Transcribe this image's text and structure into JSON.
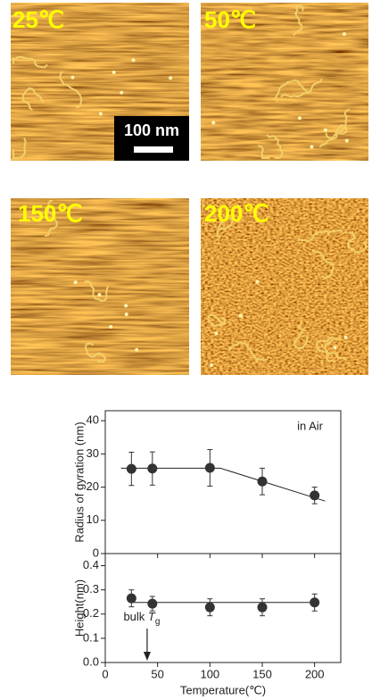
{
  "panels": [
    {
      "label": "25℃"
    },
    {
      "label": "50℃"
    },
    {
      "label": "150℃"
    },
    {
      "label": "200℃"
    }
  ],
  "scale_bar": "100 nm",
  "chart_data": [
    {
      "type": "scatter",
      "ylabel": "Radius of gyration (nm)",
      "annotation": "in Air",
      "x": [
        25,
        45,
        100,
        150,
        200
      ],
      "series": [
        {
          "color": "#333333",
          "values": [
            25.5,
            25.6,
            25.8,
            21.7,
            17.5
          ],
          "errors": [
            5,
            5,
            5.5,
            4,
            2.5
          ]
        }
      ],
      "fit_line": {
        "x": [
          15,
          110,
          210
        ],
        "y": [
          25.7,
          25.7,
          15.8
        ]
      },
      "xlim": [
        0,
        225
      ],
      "xticks": [
        0,
        50,
        100,
        150,
        200
      ],
      "ylim": [
        0,
        43
      ],
      "yticks": [
        0,
        10,
        20,
        30,
        40
      ]
    },
    {
      "type": "scatter",
      "ylabel": "Height(nm)",
      "xlabel": "Temperature(℃)",
      "annotation": {
        "text": "bulk ",
        "italic": "T",
        "sub": "g",
        "x": 40
      },
      "x": [
        25,
        45,
        100,
        150,
        200
      ],
      "series": [
        {
          "color": "#333333",
          "values": [
            0.265,
            0.243,
            0.228,
            0.228,
            0.248
          ],
          "errors": [
            0.035,
            0.03,
            0.035,
            0.035,
            0.035
          ]
        }
      ],
      "fit_line": {
        "x": [
          25,
          200
        ],
        "y": [
          0.248,
          0.248
        ]
      },
      "xlim": [
        0,
        225
      ],
      "xticks": [
        0,
        50,
        100,
        150,
        200
      ],
      "ylim": [
        0,
        0.45
      ],
      "yticks": [
        {
          "value": 0,
          "label": "0.0"
        },
        0.1,
        0.2,
        0.3,
        0.4
      ]
    }
  ]
}
